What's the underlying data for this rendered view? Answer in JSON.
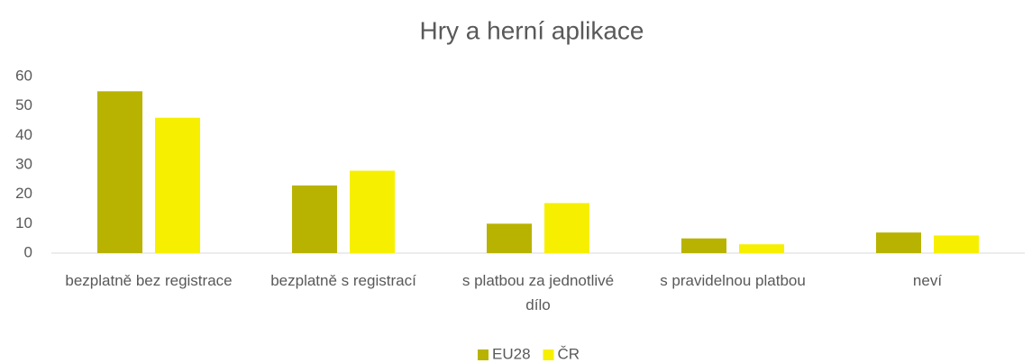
{
  "chart_data": {
    "type": "bar",
    "title": "Hry a herní aplikace",
    "categories": [
      "bezplatně bez registrace",
      "bezplatně s registrací",
      "s platbou za jednotlivé dílo",
      "s pravidelnou platbou",
      "neví"
    ],
    "series": [
      {
        "name": "EU28",
        "color": "#b8b300",
        "values": [
          55,
          23,
          10,
          5,
          7
        ]
      },
      {
        "name": "ČR",
        "color": "#f7ef00",
        "values": [
          46,
          28,
          17,
          3,
          6
        ]
      }
    ],
    "ylim": [
      0,
      60
    ],
    "yticks": [
      0,
      10,
      20,
      30,
      40,
      50,
      60
    ],
    "grid": false,
    "legend": "bottom"
  }
}
